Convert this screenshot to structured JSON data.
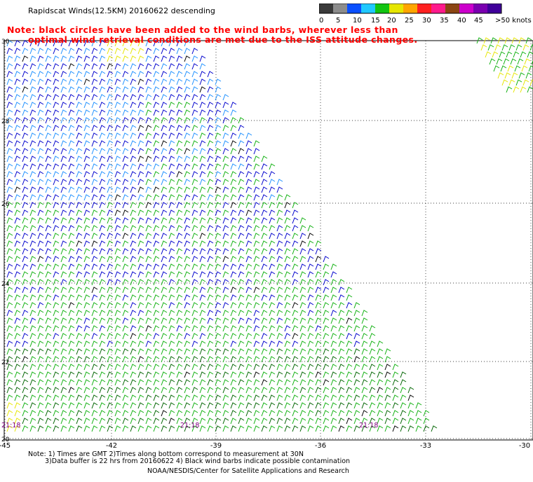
{
  "header": {
    "title": "Rapidscat Winds(12.5KM) 20160622 descending",
    "note_line_1": "Note: black circles have been added to the wind barbs, wherever less than",
    "note_line_2": "optimal wind retrieval conditions are met due to the ISS attitude changes."
  },
  "colorbar": {
    "labels": [
      "0",
      "5",
      "10",
      "15",
      "20",
      "25",
      "30",
      "35",
      "40",
      "45",
      ">50 knots"
    ],
    "colors": [
      "#3a3a3a",
      "#8c8c8c",
      "#0a4fff",
      "#20c8ff",
      "#12c412",
      "#e6e600",
      "#ffa500",
      "#ff2020",
      "#ff1a8c",
      "#8b4513",
      "#cc00cc",
      "#7a00b0",
      "#40009a"
    ]
  },
  "map": {
    "lon_ticks": [
      "-45",
      "-42",
      "-39",
      "-36",
      "-33",
      "-30"
    ],
    "lat_ticks": [
      "30",
      "28",
      "26",
      "24",
      "22",
      "20"
    ],
    "time_labels": [
      "21:18",
      "21:18",
      "21:18"
    ],
    "barb_colors": {
      "blue": "#0000cc",
      "light_blue": "#1e90ff",
      "green": "#10b010",
      "dark_green": "#006400",
      "yellow": "#e6e600",
      "contaminated": "#000000"
    }
  },
  "footer": {
    "line_1": "Note: 1) Times are GMT 2)Times along bottom correspond to measurement at 30N",
    "line_2": "3)Data buffer is 22 hrs from 20160622 4) Black wind barbs indicate possible contamination",
    "line_3": "NOAA/NESDIS/Center for Satellite Applications and Research"
  }
}
